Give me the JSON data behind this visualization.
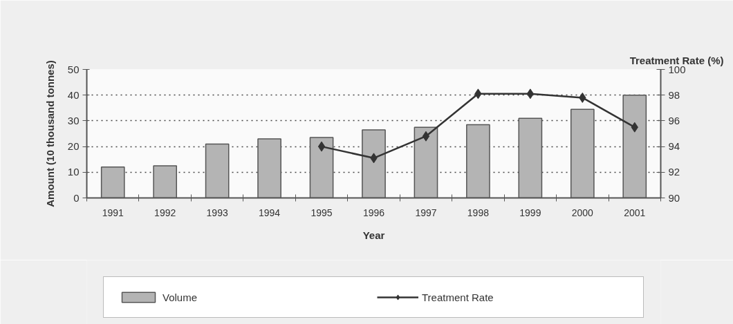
{
  "chart_data": {
    "type": "bar",
    "xlabel": "Year",
    "ylabel": "Amount (10 thousand tonnes)",
    "y2label": "Treatment Rate (%)",
    "categories": [
      "1991",
      "1992",
      "1993",
      "1994",
      "1995",
      "1996",
      "1997",
      "1998",
      "1999",
      "2000",
      "2001"
    ],
    "series": [
      {
        "name": "Volume",
        "color": "#b4b4b4",
        "values": [
          12,
          12.5,
          21,
          23,
          23.5,
          26.5,
          27.5,
          28.5,
          31,
          34.5,
          40
        ]
      },
      {
        "name": "Treatment Rate",
        "type": "line",
        "axis": "y2",
        "color": "#333333",
        "values": [
          null,
          null,
          null,
          null,
          94.0,
          93.1,
          94.8,
          98.1,
          98.1,
          97.8,
          95.5
        ]
      }
    ],
    "ylim": [
      0,
      50
    ],
    "yticks": [
      0,
      10,
      20,
      30,
      40,
      50
    ],
    "y2lim": [
      90,
      100
    ],
    "y2ticks": [
      90,
      92,
      94,
      96,
      98,
      100
    ],
    "grid": "y",
    "legend": "bottom",
    "marker": "diamond",
    "line_style": "solid"
  }
}
